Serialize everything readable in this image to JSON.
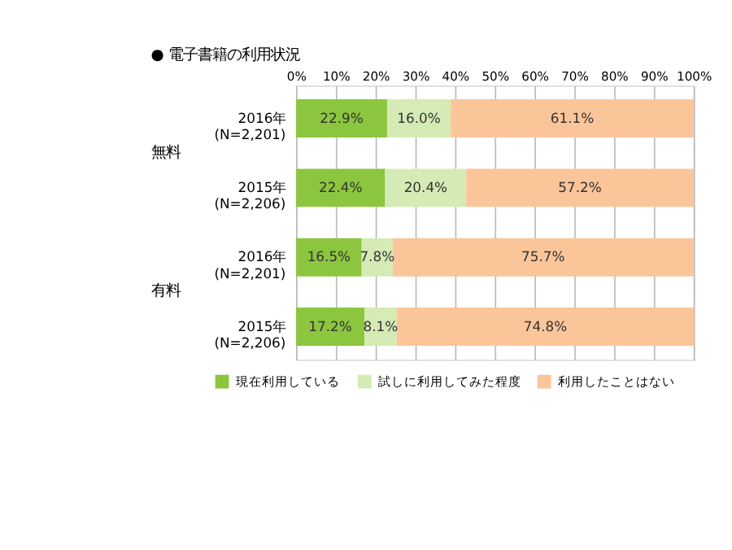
{
  "chart_data": {
    "type": "bar",
    "orientation": "horizontal",
    "stacked": true,
    "title": "● 電子書籍の利用状況",
    "categories": [
      "2016年\n(N=2,201)",
      "2015年\n(N=2,206)",
      "2016年\n(N=2,201)",
      "2015年\n(N=2,206)"
    ],
    "series": [
      {
        "name": "現在利用している",
        "color": "#8cc63e",
        "values": [
          22.9,
          22.4,
          16.5,
          17.2
        ],
        "value_labels": [
          "22.9%",
          "22.4%",
          "16.5%",
          "17.2%"
        ]
      },
      {
        "name": "試しに利用してみた程度",
        "color": "#d5ebb5",
        "values": [
          16.0,
          20.4,
          7.8,
          8.1
        ],
        "value_labels": [
          "16.0%",
          "20.4%",
          "7.8%",
          "8.1%"
        ]
      },
      {
        "name": "利用したことはない",
        "color": "#fbc59a",
        "values": [
          61.1,
          57.2,
          75.7,
          74.8
        ],
        "value_labels": [
          "61.1%",
          "57.2%",
          "75.7%",
          "74.8%"
        ]
      }
    ],
    "xlim": [
      0,
      100
    ],
    "xticks": [
      {
        "value": 0,
        "label": "0%"
      },
      {
        "value": 10,
        "label": "10%"
      },
      {
        "value": 20,
        "label": "20%"
      },
      {
        "value": 30,
        "label": "30%"
      },
      {
        "value": 40,
        "label": "40%"
      },
      {
        "value": 50,
        "label": "50%"
      },
      {
        "value": 60,
        "label": "60%"
      },
      {
        "value": 70,
        "label": "70%"
      },
      {
        "value": 80,
        "label": "80%"
      },
      {
        "value": 90,
        "label": "90%"
      },
      {
        "value": 100,
        "label": "100%"
      }
    ],
    "grid": "x",
    "legend": "bottom left",
    "annotations": [
      "無料",
      "有料"
    ]
  }
}
